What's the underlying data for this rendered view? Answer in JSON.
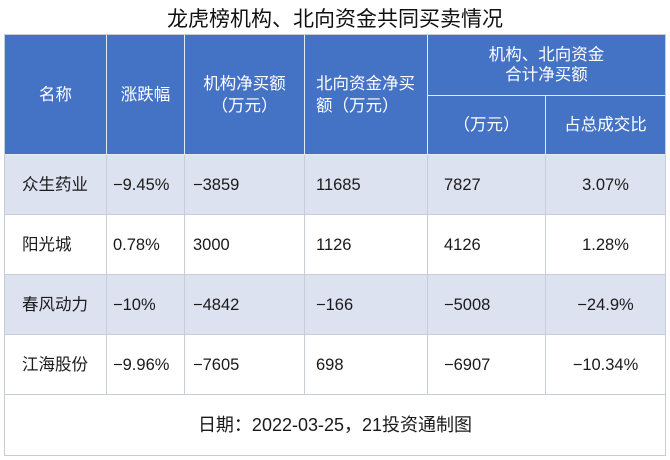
{
  "colors": {
    "header_bg": "#4472c4",
    "header_text": "#ffffff",
    "stripe_bg": "#dde2f0",
    "row_bg": "#ffffff",
    "border": "#c8ccd6",
    "text": "#1a1a1a"
  },
  "chart_data": {
    "type": "table",
    "title": "龙虎榜机构、北向资金共同买卖情况",
    "headers": {
      "name": "名称",
      "change_pct": "涨跌幅",
      "institution_net_buy": "机构净买额（万元）",
      "northbound_net_buy": "北向资金净买额（万元）",
      "combined_group": "机构、北向资金合计净买额",
      "combined_net_buy": "（万元）",
      "combined_share": "占总成交比"
    },
    "rows": [
      {
        "name": "众生药业",
        "change_pct": "−9.45%",
        "institution_net_buy": "−3859",
        "northbound_net_buy": "11685",
        "combined_net_buy": "7827",
        "combined_share": "3.07%"
      },
      {
        "name": "阳光城",
        "change_pct": "0.78%",
        "institution_net_buy": "3000",
        "northbound_net_buy": "1126",
        "combined_net_buy": "4126",
        "combined_share": "1.28%"
      },
      {
        "name": "春风动力",
        "change_pct": "−10%",
        "institution_net_buy": "−4842",
        "northbound_net_buy": "−166",
        "combined_net_buy": "−5008",
        "combined_share": "−24.9%"
      },
      {
        "name": "江海股份",
        "change_pct": "−9.96%",
        "institution_net_buy": "−7605",
        "northbound_net_buy": "698",
        "combined_net_buy": "−6907",
        "combined_share": "−10.34%"
      }
    ],
    "footnote": "日期：2022-03-25，21投资通制图"
  }
}
